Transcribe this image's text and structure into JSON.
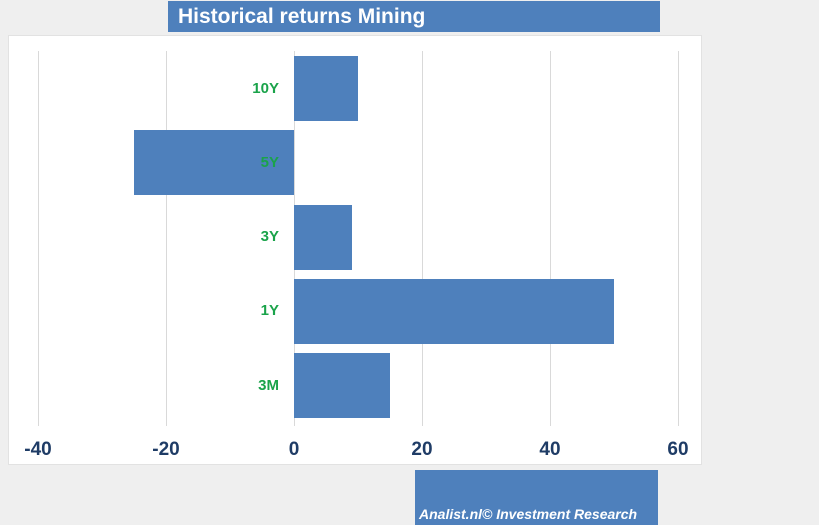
{
  "title": "Historical returns Mining",
  "footer": "Analist.nl© Investment Research",
  "colors": {
    "bar": "#4e80bc",
    "title_bg": "#4e80bc",
    "footer_bg": "#4e80bc",
    "category_label": "#1aa34a",
    "axis_label": "#1f3c66",
    "gridline": "#d9d9d9",
    "panel_bg": "#ffffff",
    "page_bg": "#efefef"
  },
  "chart_data": {
    "type": "bar",
    "orientation": "horizontal",
    "title": "Historical returns Mining",
    "categories": [
      "10Y",
      "5Y",
      "3Y",
      "1Y",
      "3M"
    ],
    "values": [
      10,
      -25,
      9,
      50,
      15
    ],
    "x_ticks": [
      -40,
      -20,
      0,
      20,
      40,
      60
    ],
    "xlim": [
      -44.5,
      64
    ],
    "xlabel": "",
    "ylabel": "",
    "grid": true,
    "legend": false,
    "value_unit": "percent"
  }
}
